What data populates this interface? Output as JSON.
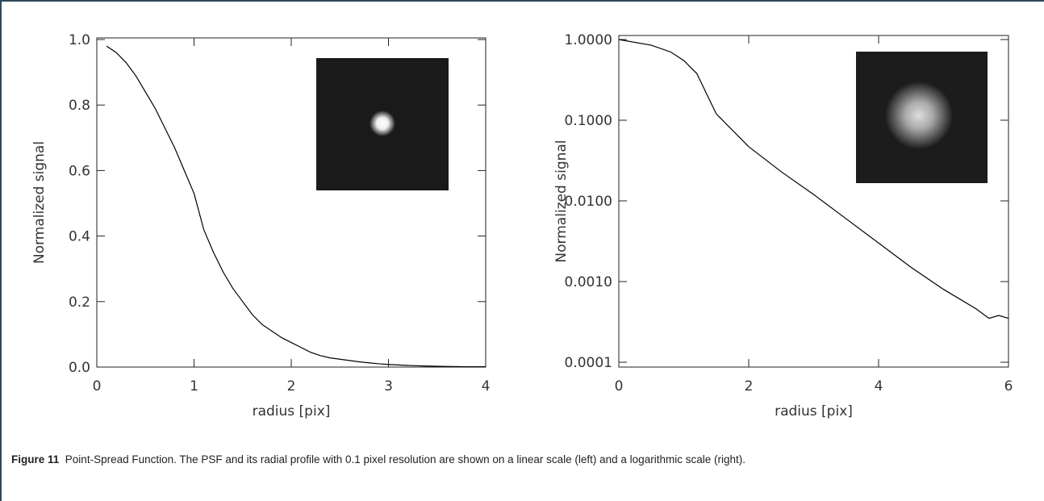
{
  "chart_data": [
    {
      "type": "line",
      "xlabel": "radius [pix]",
      "ylabel": "Normalized signal",
      "x": [
        0.1,
        0.2,
        0.3,
        0.4,
        0.5,
        0.6,
        0.7,
        0.8,
        0.9,
        1.0,
        1.1,
        1.2,
        1.3,
        1.4,
        1.5,
        1.6,
        1.7,
        1.8,
        1.9,
        2.0,
        2.1,
        2.2,
        2.3,
        2.4,
        2.5,
        2.6,
        2.7,
        2.8,
        2.9,
        3.0,
        3.2,
        3.4,
        3.6,
        3.8,
        4.0
      ],
      "series": [
        {
          "color": "#000000",
          "values": [
            0.98,
            0.96,
            0.93,
            0.89,
            0.84,
            0.79,
            0.73,
            0.67,
            0.6,
            0.53,
            0.42,
            0.35,
            0.29,
            0.24,
            0.2,
            0.16,
            0.13,
            0.11,
            0.09,
            0.075,
            0.06,
            0.045,
            0.035,
            0.028,
            0.024,
            0.02,
            0.016,
            0.013,
            0.01,
            0.008,
            0.005,
            0.003,
            0.002,
            0.001,
            0.001
          ]
        }
      ],
      "xlim": [
        0,
        4
      ],
      "xticks": [
        0,
        1,
        2,
        3,
        4
      ],
      "ylim": [
        0,
        1
      ],
      "yticks": [
        {
          "value": 0,
          "label": "0.0"
        },
        0.2,
        0.4,
        0.6,
        0.8,
        {
          "value": 1,
          "label": "1.0"
        }
      ],
      "log_scale": false
    },
    {
      "type": "line",
      "xlabel": "radius [pix]",
      "ylabel": "Normalized signal",
      "x": [
        0,
        0.5,
        0.8,
        1.0,
        1.2,
        1.5,
        2.0,
        2.5,
        3.0,
        3.5,
        4.0,
        4.5,
        5.0,
        5.5,
        5.7,
        5.85,
        6.0
      ],
      "series": [
        {
          "color": "#000000",
          "values": [
            1.0,
            0.85,
            0.7,
            0.55,
            0.38,
            0.12,
            0.047,
            0.023,
            0.012,
            0.006,
            0.003,
            0.0015,
            0.0008,
            0.00046,
            0.00035,
            0.00038,
            0.00035
          ]
        }
      ],
      "xlim": [
        0,
        6
      ],
      "xticks": [
        0,
        2,
        4,
        6
      ],
      "ylim": [
        0.0001,
        1
      ],
      "yticks": [
        {
          "value": 0.0001,
          "label": "0.0001"
        },
        {
          "value": 0.001,
          "label": "0.0010"
        },
        {
          "value": 0.01,
          "label": "0.0100"
        },
        {
          "value": 0.1,
          "label": "0.1000"
        },
        {
          "value": 1,
          "label": "1.0000"
        }
      ],
      "log_scale": true
    }
  ],
  "caption": {
    "label": "Figure 11",
    "text": "Point-Spread Function. The PSF and its radial profile with 0.1 pixel resolution are shown on a linear scale (left) and a logarithmic scale (right)."
  }
}
